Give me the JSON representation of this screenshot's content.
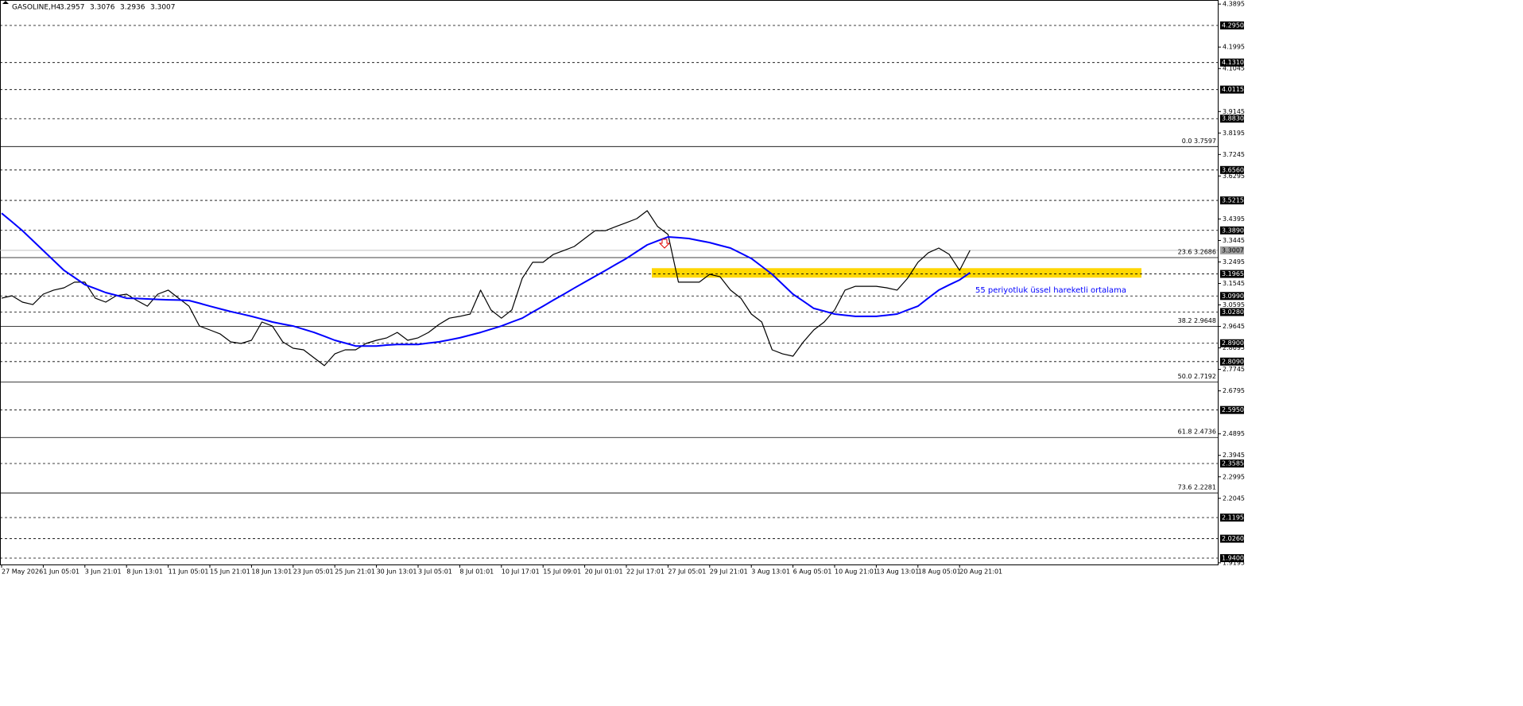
{
  "chart_data": {
    "type": "line",
    "symbol": "GASOLINE,H4",
    "ohlc": [
      3.2957,
      3.3076,
      3.2936,
      3.3007
    ],
    "annotation": "55 periyotluk üssel hareketli ortalama",
    "categories": [
      "27 May 2026",
      null,
      null,
      null,
      "1 Jun 05:01",
      null,
      null,
      null,
      "3 Jun 21:01",
      null,
      null,
      null,
      "8 Jun 13:01",
      null,
      null,
      null,
      "11 Jun 05:01",
      null,
      null,
      null,
      "15 Jun 21:01",
      null,
      null,
      null,
      "18 Jun 13:01",
      null,
      null,
      null,
      "23 Jun 05:01",
      null,
      null,
      null,
      "25 Jun 21:01",
      null,
      null,
      null,
      "30 Jun 13:01",
      null,
      null,
      null,
      "3 Jul 05:01",
      null,
      null,
      null,
      "8 Jul 01:01",
      null,
      null,
      null,
      "10 Jul 17:01",
      null,
      null,
      null,
      "15 Jul 09:01",
      null,
      null,
      null,
      "20 Jul 01:01",
      null,
      null,
      null,
      "22 Jul 17:01",
      null,
      null,
      null,
      "27 Jul 05:01",
      null,
      null,
      null,
      "29 Jul 21:01",
      null,
      null,
      null,
      "3 Aug 13:01",
      null,
      null,
      null,
      "6 Aug 05:01",
      null,
      null,
      null,
      "10 Aug 21:01",
      null,
      null,
      null,
      "13 Aug 13:01",
      null,
      null,
      null,
      "18 Aug 05:01",
      null,
      null,
      null,
      "20 Aug 21:01",
      null
    ],
    "series": [
      {
        "color": "#000000",
        "values": [
          3.089,
          3.1,
          3.072,
          3.061,
          3.107,
          3.125,
          3.135,
          3.16,
          3.16,
          3.089,
          3.072,
          3.1,
          3.107,
          3.079,
          3.054,
          3.107,
          3.125,
          3.089,
          3.054,
          2.966,
          2.949,
          2.931,
          2.896,
          2.889,
          2.903,
          2.984,
          2.966,
          2.896,
          2.868,
          2.861,
          2.826,
          2.791,
          2.843,
          2.861,
          2.861,
          2.889,
          2.903,
          2.914,
          2.938,
          2.903,
          2.914,
          2.938,
          2.973,
          3.001,
          3.009,
          3.019,
          3.125,
          3.037,
          3.001,
          3.037,
          3.177,
          3.248,
          3.248,
          3.283,
          3.3,
          3.318,
          3.353,
          3.388,
          3.388,
          3.406,
          3.423,
          3.441,
          3.476,
          3.406,
          3.371,
          3.16,
          3.16,
          3.16,
          3.195,
          3.184,
          3.125,
          3.089,
          3.019,
          2.984,
          2.861,
          2.843,
          2.833,
          2.896,
          2.949,
          2.984,
          3.037,
          3.125,
          3.142,
          3.142,
          3.142,
          3.135,
          3.125,
          3.177,
          3.248,
          3.29,
          3.311,
          3.283,
          3.212,
          3.3007
        ]
      },
      {
        "color": "#0000ff",
        "values": [
          3.465,
          3.427,
          3.388,
          3.344,
          3.3,
          3.256,
          3.212,
          3.181,
          3.149,
          3.132,
          3.114,
          3.102,
          3.089,
          3.088,
          3.086,
          3.084,
          3.082,
          3.081,
          3.079,
          3.067,
          3.054,
          3.042,
          3.03,
          3.02,
          3.009,
          2.997,
          2.984,
          2.975,
          2.966,
          2.952,
          2.938,
          2.921,
          2.903,
          2.891,
          2.878,
          2.878,
          2.878,
          2.882,
          2.885,
          2.885,
          2.885,
          2.891,
          2.896,
          2.905,
          2.914,
          2.926,
          2.938,
          2.952,
          2.966,
          2.984,
          3.001,
          3.028,
          3.054,
          3.081,
          3.107,
          3.134,
          3.16,
          3.186,
          3.212,
          3.239,
          3.265,
          3.295,
          3.325,
          3.343,
          3.36,
          3.357,
          3.353,
          3.344,
          3.335,
          3.323,
          3.311,
          3.288,
          3.265,
          3.23,
          3.195,
          3.151,
          3.107,
          3.076,
          3.044,
          3.032,
          3.019,
          3.014,
          3.009,
          3.009,
          3.009,
          3.014,
          3.019,
          3.037,
          3.054,
          3.09,
          3.125,
          3.148,
          3.17,
          3.202
        ]
      }
    ],
    "ylim": [
      1.912,
      4.4075
    ],
    "yticks": [
      4.3895,
      4.1995,
      4.1045,
      3.9145,
      3.8195,
      3.7245,
      3.6295,
      3.4395,
      3.3445,
      3.2495,
      3.1545,
      3.0595,
      2.9645,
      2.8695,
      2.7745,
      2.6795,
      2.4895,
      2.3945,
      2.2995,
      2.2045,
      1.9195
    ],
    "levels": [
      {
        "value": 4.295,
        "label": "4.2950"
      },
      {
        "value": 4.131,
        "label": "4.1310"
      },
      4.0115,
      {
        "value": 3.883,
        "label": "3.8830"
      },
      {
        "value": 3.656,
        "label": "3.6560"
      },
      3.5215,
      {
        "value": 3.389,
        "label": "3.3890"
      },
      3.1965,
      {
        "value": 3.099,
        "label": "3.0990"
      },
      {
        "value": 3.028,
        "label": "3.0280"
      },
      {
        "value": 2.89,
        "label": "2.8900"
      },
      {
        "value": 2.809,
        "label": "2.8090"
      },
      {
        "value": 2.595,
        "label": "2.5950"
      },
      2.3585,
      2.1195,
      {
        "value": 2.026,
        "label": "2.0260"
      },
      {
        "value": 1.94,
        "label": "1.9400"
      }
    ],
    "current_price": 3.3007,
    "fib_levels": [
      {
        "value": 3.7597,
        "label": "0.0 3.7597"
      },
      {
        "value": 3.2686,
        "label": "23.6 3.2686"
      },
      {
        "value": 2.9648,
        "label": "38.2 2.9648"
      },
      {
        "value": 2.7192,
        "label": "50.0 2.7192"
      },
      {
        "value": 2.4736,
        "label": "61.8 2.4736"
      },
      {
        "value": 2.2281,
        "label": "73.6 2.2281"
      }
    ],
    "zone": {
      "from": 3.18,
      "to": 3.222,
      "color": "#ffd700"
    }
  }
}
